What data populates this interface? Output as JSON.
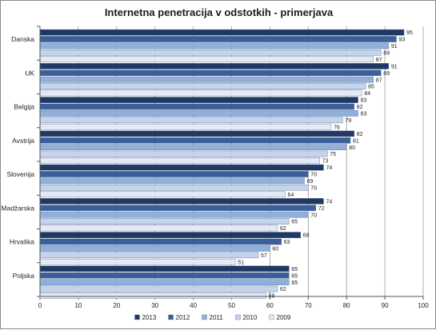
{
  "chart_data": {
    "type": "bar",
    "orientation": "horizontal",
    "title": "Internetna penetracija v odstotkih - primerjava",
    "categories": [
      "Danska",
      "UK",
      "Belgija",
      "Avstrija",
      "Slovenija",
      "Madžarska",
      "Hrvaška",
      "Poljska"
    ],
    "series": [
      {
        "name": "2013",
        "color": "#1f3864",
        "values": [
          95,
          91,
          83,
          82,
          74,
          74,
          68,
          65
        ]
      },
      {
        "name": "2012",
        "color": "#3a5f9b",
        "values": [
          93,
          89,
          82,
          81,
          70,
          72,
          63,
          65
        ]
      },
      {
        "name": "2011",
        "color": "#8fb0db",
        "values": [
          91,
          87,
          83,
          80,
          69,
          70,
          60,
          65
        ]
      },
      {
        "name": "2010",
        "color": "#c3d4ec",
        "values": [
          89,
          85,
          79,
          75,
          70,
          65,
          57,
          62
        ]
      },
      {
        "name": "2009",
        "color": "#e3eaf5",
        "values": [
          87,
          84,
          76,
          73,
          64,
          62,
          51,
          59
        ]
      }
    ],
    "xlim": [
      0,
      100
    ],
    "xticks": [
      0,
      10,
      20,
      30,
      40,
      50,
      60,
      70,
      80,
      90,
      100
    ],
    "grid": true,
    "legend_position": "bottom"
  }
}
